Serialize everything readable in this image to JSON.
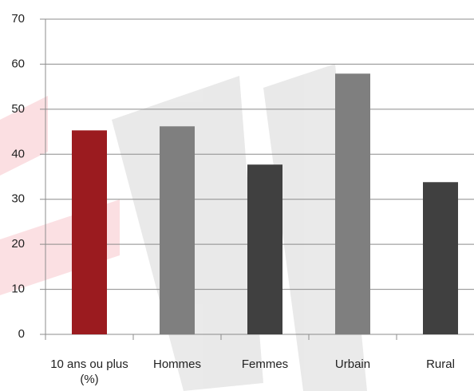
{
  "chart_data": {
    "type": "bar",
    "categories": [
      "10 ans ou plus (%)",
      "Hommes",
      "Femmes",
      "Urbain",
      "Rural"
    ],
    "values": [
      45.3,
      46.2,
      37.7,
      57.9,
      33.8
    ],
    "colors": [
      "#9b1b1f",
      "#7f7f7f",
      "#404040",
      "#7f7f7f",
      "#404040"
    ],
    "ylim": [
      0,
      70
    ],
    "yticks": [
      0,
      10,
      20,
      30,
      40,
      50,
      60,
      70
    ],
    "grid": true
  }
}
